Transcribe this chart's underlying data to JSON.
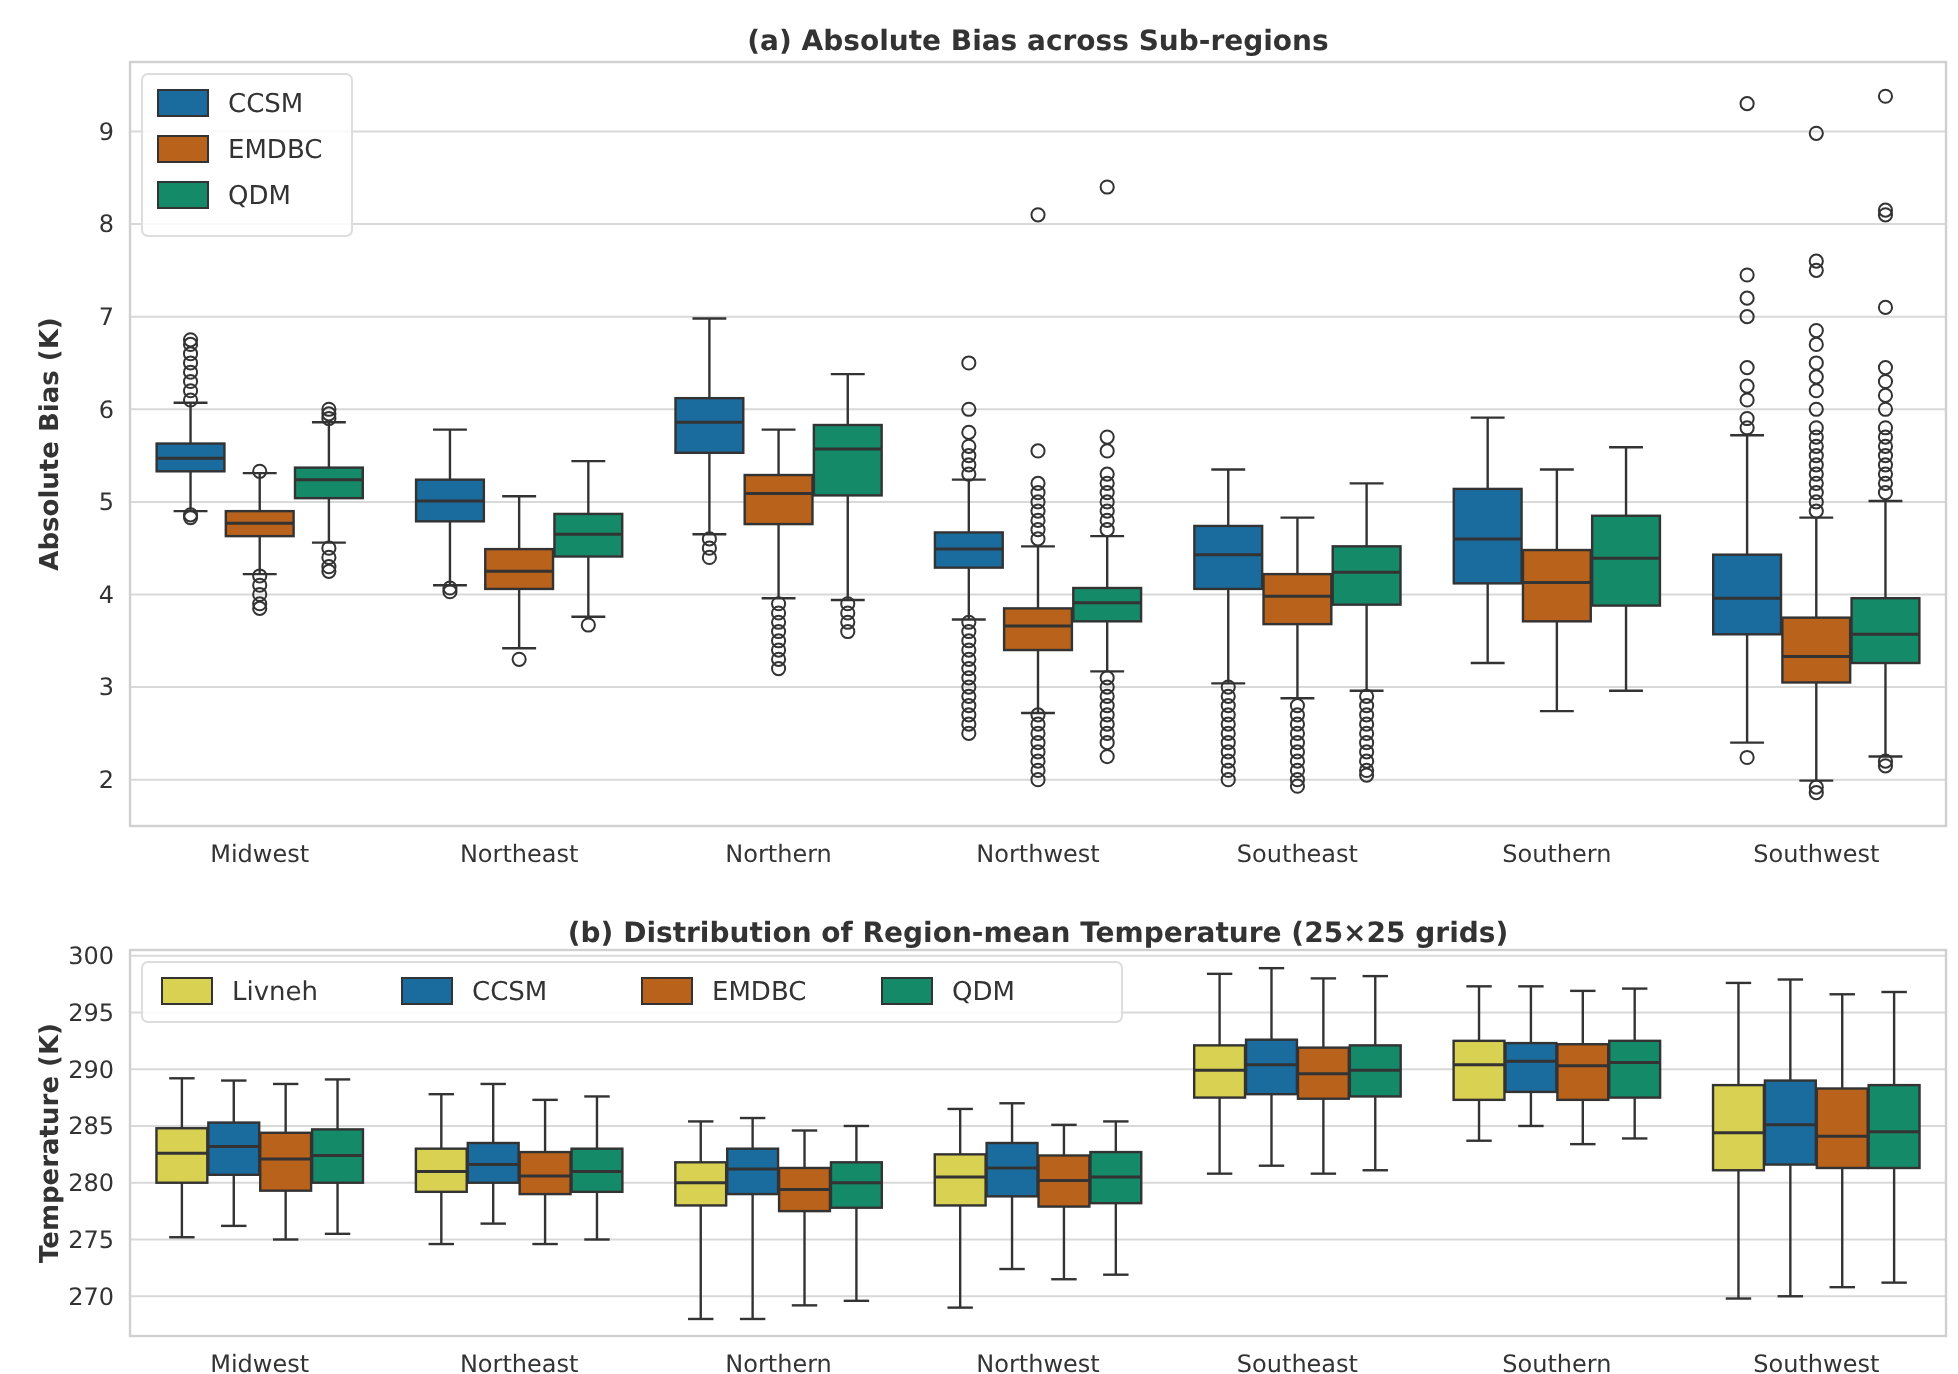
{
  "chart_data": [
    {
      "type": "box",
      "title": "(a) Absolute Bias across Sub-regions",
      "ylabel": "Absolute Bias (K)",
      "categories": [
        "Midwest",
        "Northeast",
        "Northern",
        "Northwest",
        "Southeast",
        "Southern",
        "Southwest"
      ],
      "ylim": [
        1.5,
        9.75
      ],
      "yticks": [
        2,
        3,
        4,
        5,
        6,
        7,
        8,
        9
      ],
      "grid": "y",
      "legend": "top left",
      "marker": "circle",
      "series": [
        {
          "name": "CCSM",
          "color": "#1b6c9e",
          "boxes": [
            {
              "low": 4.9,
              "q1": 5.33,
              "median": 5.47,
              "q3": 5.63,
              "high": 6.07,
              "outliers": [
                4.83,
                4.86,
                6.1,
                6.2,
                6.3,
                6.4,
                6.5,
                6.6,
                6.7,
                6.75
              ]
            },
            {
              "low": 4.1,
              "q1": 4.79,
              "median": 5.01,
              "q3": 5.24,
              "high": 5.78,
              "outliers": [
                4.03,
                4.07
              ]
            },
            {
              "low": 4.65,
              "q1": 5.53,
              "median": 5.86,
              "q3": 6.12,
              "high": 6.98,
              "outliers": [
                4.4,
                4.5,
                4.6
              ]
            },
            {
              "low": 3.73,
              "q1": 4.29,
              "median": 4.49,
              "q3": 4.67,
              "high": 5.24,
              "outliers": [
                5.3,
                5.4,
                5.5,
                5.6,
                5.75,
                6.0,
                6.5,
                2.5,
                2.6,
                2.7,
                2.8,
                2.9,
                3.0,
                3.1,
                3.2,
                3.3,
                3.4,
                3.5,
                3.6,
                3.7
              ]
            },
            {
              "low": 3.04,
              "q1": 4.06,
              "median": 4.43,
              "q3": 4.74,
              "high": 5.35,
              "outliers": [
                2.0,
                2.1,
                2.2,
                2.3,
                2.4,
                2.5,
                2.6,
                2.7,
                2.8,
                2.9,
                3.0
              ]
            },
            {
              "low": 3.26,
              "q1": 4.12,
              "median": 4.6,
              "q3": 5.14,
              "high": 5.91
            },
            {
              "low": 2.4,
              "q1": 3.57,
              "median": 3.96,
              "q3": 4.43,
              "high": 5.72,
              "outliers": [
                5.8,
                5.9,
                6.1,
                6.25,
                6.45,
                7.0,
                7.2,
                7.45,
                9.3,
                2.24
              ]
            }
          ]
        },
        {
          "name": "EMDBC",
          "color": "#b8621b",
          "boxes": [
            {
              "low": 4.22,
              "q1": 4.63,
              "median": 4.77,
              "q3": 4.9,
              "high": 5.31,
              "outliers": [
                5.33,
                3.85,
                3.9,
                4.0,
                4.1,
                4.2
              ]
            },
            {
              "low": 3.42,
              "q1": 4.06,
              "median": 4.25,
              "q3": 4.49,
              "high": 5.06,
              "outliers": [
                3.3
              ]
            },
            {
              "low": 3.96,
              "q1": 4.76,
              "median": 5.09,
              "q3": 5.29,
              "high": 5.78,
              "outliers": [
                3.2,
                3.3,
                3.4,
                3.5,
                3.6,
                3.7,
                3.8,
                3.9
              ]
            },
            {
              "low": 2.72,
              "q1": 3.4,
              "median": 3.66,
              "q3": 3.85,
              "high": 4.52,
              "outliers": [
                4.6,
                4.7,
                4.8,
                4.9,
                5.0,
                5.1,
                5.2,
                5.55,
                8.1,
                2.0,
                2.1,
                2.2,
                2.3,
                2.4,
                2.5,
                2.6,
                2.7
              ]
            },
            {
              "low": 2.88,
              "q1": 3.68,
              "median": 3.98,
              "q3": 4.22,
              "high": 4.83,
              "outliers": [
                1.93,
                2.0,
                2.1,
                2.2,
                2.3,
                2.4,
                2.5,
                2.6,
                2.7,
                2.8
              ]
            },
            {
              "low": 2.74,
              "q1": 3.71,
              "median": 4.13,
              "q3": 4.48,
              "high": 5.35
            },
            {
              "low": 1.99,
              "q1": 3.05,
              "median": 3.33,
              "q3": 3.75,
              "high": 4.83,
              "outliers": [
                4.9,
                5.0,
                5.1,
                5.2,
                5.3,
                5.4,
                5.5,
                5.6,
                5.7,
                5.8,
                6.0,
                6.2,
                6.35,
                6.5,
                6.7,
                6.85,
                7.5,
                7.6,
                8.98,
                1.92,
                1.86
              ]
            }
          ]
        },
        {
          "name": "QDM",
          "color": "#148a69",
          "boxes": [
            {
              "low": 4.56,
              "q1": 5.04,
              "median": 5.24,
              "q3": 5.37,
              "high": 5.86,
              "outliers": [
                5.9,
                5.95,
                6.0,
                4.25,
                4.3,
                4.4,
                4.5
              ]
            },
            {
              "low": 3.76,
              "q1": 4.41,
              "median": 4.65,
              "q3": 4.87,
              "high": 5.44,
              "outliers": [
                3.67
              ]
            },
            {
              "low": 3.94,
              "q1": 5.07,
              "median": 5.57,
              "q3": 5.83,
              "high": 6.38,
              "outliers": [
                3.6,
                3.7,
                3.8,
                3.9
              ]
            },
            {
              "low": 3.17,
              "q1": 3.71,
              "median": 3.91,
              "q3": 4.07,
              "high": 4.63,
              "outliers": [
                4.7,
                4.8,
                4.9,
                5.0,
                5.1,
                5.2,
                5.3,
                5.55,
                5.7,
                8.4,
                2.25,
                2.4,
                2.5,
                2.6,
                2.7,
                2.8,
                2.9,
                3.0,
                3.1
              ]
            },
            {
              "low": 2.96,
              "q1": 3.89,
              "median": 4.24,
              "q3": 4.52,
              "high": 5.2,
              "outliers": [
                2.05,
                2.1,
                2.2,
                2.3,
                2.4,
                2.5,
                2.6,
                2.7,
                2.8,
                2.9
              ]
            },
            {
              "low": 2.96,
              "q1": 3.88,
              "median": 4.39,
              "q3": 4.85,
              "high": 5.59
            },
            {
              "low": 2.25,
              "q1": 3.26,
              "median": 3.57,
              "q3": 3.96,
              "high": 5.01,
              "outliers": [
                5.1,
                5.2,
                5.3,
                5.4,
                5.5,
                5.6,
                5.7,
                5.8,
                6.0,
                6.15,
                6.3,
                6.45,
                7.1,
                8.1,
                8.15,
                9.38,
                2.2,
                2.15
              ]
            }
          ]
        }
      ]
    },
    {
      "type": "box",
      "title": "(b) Distribution of Region-mean Temperature (25×25 grids)",
      "ylabel": "Temperature (K)",
      "categories": [
        "Midwest",
        "Northeast",
        "Northern",
        "Northwest",
        "Southeast",
        "Southern",
        "Southwest"
      ],
      "ylim": [
        266.5,
        300.5
      ],
      "yticks": [
        270,
        275,
        280,
        285,
        290,
        295,
        300
      ],
      "grid": "y",
      "legend": "top left",
      "series": [
        {
          "name": "Livneh",
          "color": "#d9d152",
          "boxes": [
            {
              "low": 275.2,
              "q1": 280,
              "median": 282.6,
              "q3": 284.8,
              "high": 289.2
            },
            {
              "low": 274.6,
              "q1": 279.2,
              "median": 281,
              "q3": 283,
              "high": 287.8
            },
            {
              "low": 268,
              "q1": 278,
              "median": 280,
              "q3": 281.8,
              "high": 285.4
            },
            {
              "low": 269,
              "q1": 278,
              "median": 280.5,
              "q3": 282.5,
              "high": 286.5
            },
            {
              "low": 280.8,
              "q1": 287.5,
              "median": 289.9,
              "q3": 292.1,
              "high": 298.4
            },
            {
              "low": 283.7,
              "q1": 287.3,
              "median": 290.4,
              "q3": 292.5,
              "high": 297.3
            },
            {
              "low": 269.8,
              "q1": 281.1,
              "median": 284.4,
              "q3": 288.6,
              "high": 297.6
            }
          ]
        },
        {
          "name": "CCSM",
          "color": "#1b6c9e",
          "boxes": [
            {
              "low": 276.2,
              "q1": 280.7,
              "median": 283.2,
              "q3": 285.3,
              "high": 289
            },
            {
              "low": 276.4,
              "q1": 280,
              "median": 281.6,
              "q3": 283.5,
              "high": 288.7
            },
            {
              "low": 268,
              "q1": 279,
              "median": 281.2,
              "q3": 283,
              "high": 285.7
            },
            {
              "low": 272.4,
              "q1": 278.8,
              "median": 281.3,
              "q3": 283.5,
              "high": 287
            },
            {
              "low": 281.5,
              "q1": 287.8,
              "median": 290.4,
              "q3": 292.6,
              "high": 298.9
            },
            {
              "low": 285,
              "q1": 288,
              "median": 290.7,
              "q3": 292.3,
              "high": 297.3
            },
            {
              "low": 270,
              "q1": 281.6,
              "median": 285.1,
              "q3": 289,
              "high": 297.9
            }
          ]
        },
        {
          "name": "EMDBC",
          "color": "#b8621b",
          "boxes": [
            {
              "low": 275,
              "q1": 279.3,
              "median": 282.1,
              "q3": 284.4,
              "high": 288.7
            },
            {
              "low": 274.6,
              "q1": 279,
              "median": 280.6,
              "q3": 282.7,
              "high": 287.3
            },
            {
              "low": 269.2,
              "q1": 277.5,
              "median": 279.4,
              "q3": 281.3,
              "high": 284.6
            },
            {
              "low": 271.5,
              "q1": 277.9,
              "median": 280.2,
              "q3": 282.4,
              "high": 285.1
            },
            {
              "low": 280.8,
              "q1": 287.4,
              "median": 289.6,
              "q3": 291.9,
              "high": 298
            },
            {
              "low": 283.4,
              "q1": 287.3,
              "median": 290.3,
              "q3": 292.2,
              "high": 296.9
            },
            {
              "low": 270.8,
              "q1": 281.3,
              "median": 284.1,
              "q3": 288.3,
              "high": 296.6
            }
          ]
        },
        {
          "name": "QDM",
          "color": "#148a69",
          "boxes": [
            {
              "low": 275.5,
              "q1": 280,
              "median": 282.4,
              "q3": 284.7,
              "high": 289.1
            },
            {
              "low": 275,
              "q1": 279.2,
              "median": 281,
              "q3": 283,
              "high": 287.6
            },
            {
              "low": 269.6,
              "q1": 277.8,
              "median": 280,
              "q3": 281.8,
              "high": 285
            },
            {
              "low": 271.9,
              "q1": 278.2,
              "median": 280.5,
              "q3": 282.7,
              "high": 285.4
            },
            {
              "low": 281.1,
              "q1": 287.6,
              "median": 289.9,
              "q3": 292.1,
              "high": 298.2
            },
            {
              "low": 283.9,
              "q1": 287.5,
              "median": 290.6,
              "q3": 292.5,
              "high": 297.1
            },
            {
              "low": 271.2,
              "q1": 281.3,
              "median": 284.5,
              "q3": 288.6,
              "high": 296.8
            }
          ]
        }
      ]
    }
  ]
}
